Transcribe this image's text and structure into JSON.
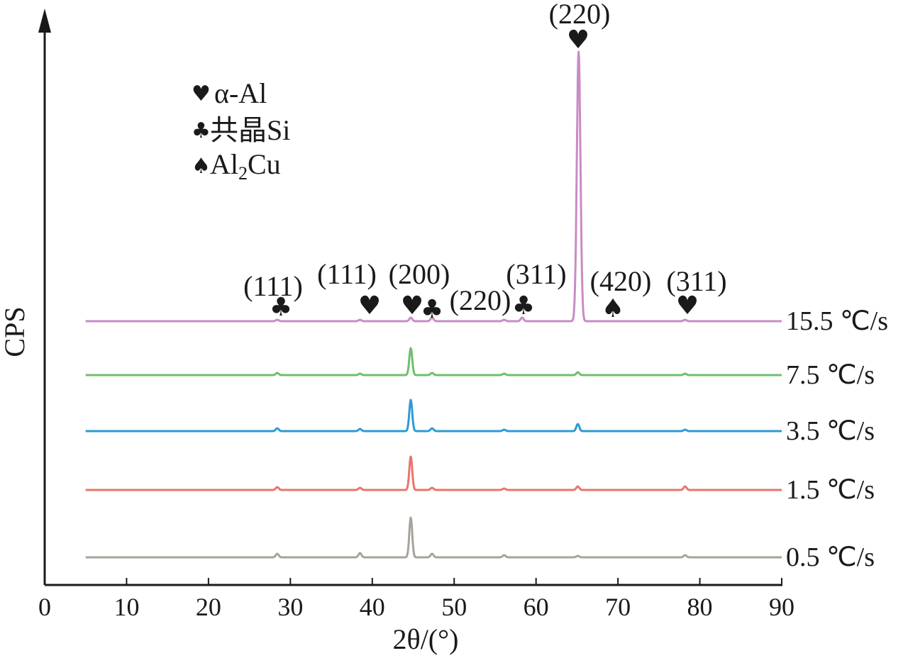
{
  "chart_data": {
    "type": "line",
    "xlabel": "2θ/(°)",
    "ylabel": "CPS",
    "xlim": [
      0,
      90
    ],
    "xticks": [
      "0",
      "10",
      "20",
      "30",
      "40",
      "50",
      "60",
      "70",
      "80",
      "90"
    ],
    "legend": [
      {
        "symbol": "♥",
        "symbol_name": "heart-icon",
        "text": "α-Al"
      },
      {
        "symbol": "♣",
        "symbol_name": "club-icon",
        "text": "共晶Si"
      },
      {
        "symbol": "♠",
        "symbol_name": "spade-icon",
        "text": "Al",
        "subscript": "2",
        "suffix": "Cu"
      }
    ],
    "series": [
      {
        "name": "15.5 ℃/s",
        "color": "#c98bc6",
        "peaks": [
          {
            "x": 28.4,
            "h": 2
          },
          {
            "x": 38.5,
            "h": 2
          },
          {
            "x": 44.7,
            "h": 5
          },
          {
            "x": 47.3,
            "h": 5
          },
          {
            "x": 56.1,
            "h": 2
          },
          {
            "x": 58.3,
            "h": 5
          },
          {
            "x": 65.2,
            "h": 380
          },
          {
            "x": 78.2,
            "h": 2
          }
        ]
      },
      {
        "name": "7.5 ℃/s",
        "color": "#6dbf6d",
        "peaks": [
          {
            "x": 28.4,
            "h": 3
          },
          {
            "x": 38.5,
            "h": 2
          },
          {
            "x": 44.7,
            "h": 38
          },
          {
            "x": 47.3,
            "h": 3
          },
          {
            "x": 56.1,
            "h": 2
          },
          {
            "x": 65.1,
            "h": 4
          },
          {
            "x": 78.2,
            "h": 2
          }
        ]
      },
      {
        "name": "3.5 ℃/s",
        "color": "#2e9ad4",
        "peaks": [
          {
            "x": 28.4,
            "h": 4
          },
          {
            "x": 38.5,
            "h": 3
          },
          {
            "x": 44.7,
            "h": 44
          },
          {
            "x": 47.3,
            "h": 4
          },
          {
            "x": 56.1,
            "h": 2
          },
          {
            "x": 65.1,
            "h": 10
          },
          {
            "x": 78.2,
            "h": 2
          }
        ]
      },
      {
        "name": "1.5 ℃/s",
        "color": "#e8756a",
        "peaks": [
          {
            "x": 28.4,
            "h": 4
          },
          {
            "x": 38.5,
            "h": 3
          },
          {
            "x": 44.7,
            "h": 47
          },
          {
            "x": 47.3,
            "h": 3
          },
          {
            "x": 56.1,
            "h": 2
          },
          {
            "x": 65.1,
            "h": 5
          },
          {
            "x": 78.2,
            "h": 5
          }
        ]
      },
      {
        "name": "0.5 ℃/s",
        "color": "#a8a39a",
        "peaks": [
          {
            "x": 28.4,
            "h": 5
          },
          {
            "x": 38.5,
            "h": 6
          },
          {
            "x": 44.7,
            "h": 56
          },
          {
            "x": 47.3,
            "h": 5
          },
          {
            "x": 56.1,
            "h": 3
          },
          {
            "x": 65.1,
            "h": 2
          },
          {
            "x": 78.2,
            "h": 3
          }
        ]
      }
    ],
    "annotations": [
      {
        "label": "(111)",
        "symbol": "♣",
        "symbol_name": "club-icon",
        "x": 29.5
      },
      {
        "label": "(111)",
        "symbol": "♥",
        "symbol_name": "heart-icon",
        "x": 40.1
      },
      {
        "label": "(200)",
        "symbol": "♥",
        "symbol_name": "heart-icon",
        "x": 45.5
      },
      {
        "label": "(220)",
        "symbol": "♣",
        "symbol_name": "club-icon",
        "x": 47.6
      },
      {
        "label": "(311)",
        "symbol": "♣",
        "symbol_name": "club-icon",
        "x": 58.7
      },
      {
        "label": "(220)",
        "symbol": "♥",
        "symbol_name": "heart-icon",
        "x": 65.6
      },
      {
        "label": "(420)",
        "symbol": "♠",
        "symbol_name": "spade-icon",
        "x": 69.7
      },
      {
        "label": "(311)",
        "symbol": "♥",
        "symbol_name": "heart-icon",
        "x": 78.9
      }
    ]
  }
}
